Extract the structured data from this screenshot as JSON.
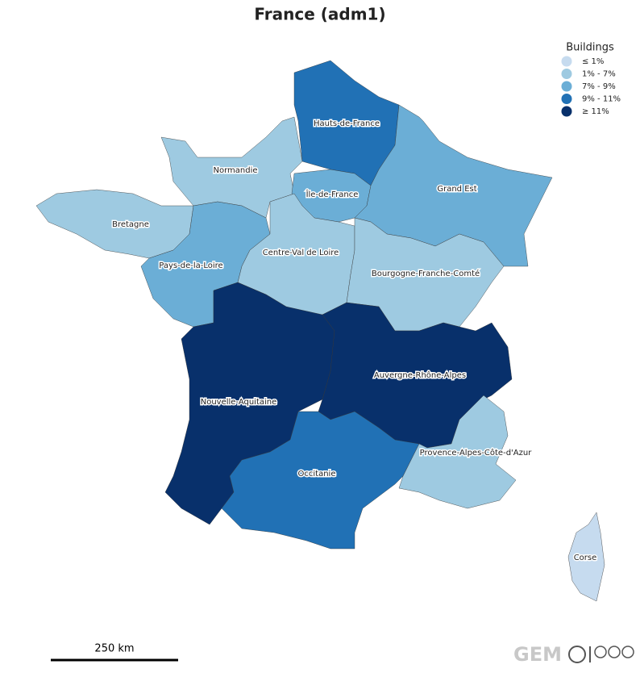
{
  "title": "France (adm1)",
  "legend": {
    "title": "Buildings",
    "items": [
      {
        "label": "≤ 1%",
        "color": "#c6dbef"
      },
      {
        "label": "1% - 7%",
        "color": "#9ecae1"
      },
      {
        "label": "7% - 9%",
        "color": "#6baed6"
      },
      {
        "label": "9% - 11%",
        "color": "#2171b5"
      },
      {
        "label": "≥ 11%",
        "color": "#08306b"
      }
    ]
  },
  "regions": [
    {
      "name": "Hauts-de-France",
      "color": "#2171b5"
    },
    {
      "name": "Normandie",
      "color": "#9ecae1"
    },
    {
      "name": "Bretagne",
      "color": "#9ecae1"
    },
    {
      "name": "Pays-de-la-Loire",
      "color": "#6baed6"
    },
    {
      "name": "Île-de-France",
      "color": "#6baed6"
    },
    {
      "name": "Centre-Val de Loire",
      "color": "#9ecae1"
    },
    {
      "name": "Grand Est",
      "color": "#6baed6"
    },
    {
      "name": "Bourgogne-Franche-Comté",
      "color": "#9ecae1"
    },
    {
      "name": "Nouvelle-Aquitaine",
      "color": "#08306b"
    },
    {
      "name": "Auvergne-Rhône-Alpes",
      "color": "#08306b"
    },
    {
      "name": "Occitanie",
      "color": "#2171b5"
    },
    {
      "name": "Provence-Alpes-Côte-d'Azur",
      "color": "#9ecae1"
    },
    {
      "name": "Corse",
      "color": "#c6dbef"
    }
  ],
  "scale_bar": "250 km",
  "logo": "GEM"
}
